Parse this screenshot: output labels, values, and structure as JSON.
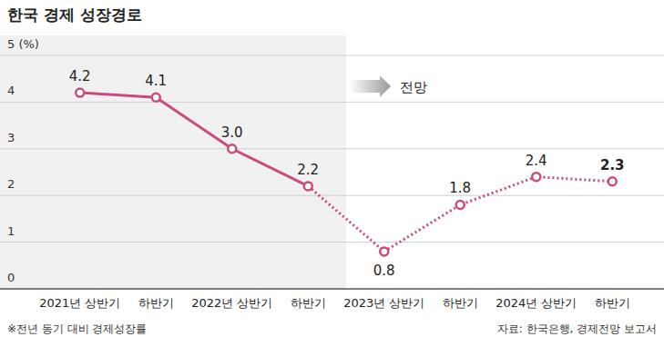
{
  "chart_data": {
    "type": "line",
    "title": "한국 경제 성장경로",
    "categories": [
      "2021년 상반기",
      "하반기",
      "2022년 상반기",
      "하반기",
      "2023년 상반기",
      "하반기",
      "2024년 상반기",
      "하반기"
    ],
    "values": [
      4.2,
      4.1,
      3.0,
      2.2,
      0.8,
      1.8,
      2.4,
      2.3
    ],
    "value_labels": [
      "4.2",
      "4.1",
      "3.0",
      "2.2",
      "0.8",
      "1.8",
      "2.4",
      "2.3"
    ],
    "color": "#c94c7c",
    "marker": "circle",
    "data_labels": true,
    "grid": true,
    "ylim": [
      0,
      5
    ],
    "yticks": [
      0,
      1,
      2,
      3,
      4,
      {
        "value": 5,
        "label": "5 (%)"
      }
    ],
    "annotations": [
      {
        "text": "전망",
        "from": "2023년 상반기"
      }
    ],
    "note": "※전년 동기 대비 경제성장률",
    "source": "자료: 한국은행, 경제전망 보고서"
  }
}
